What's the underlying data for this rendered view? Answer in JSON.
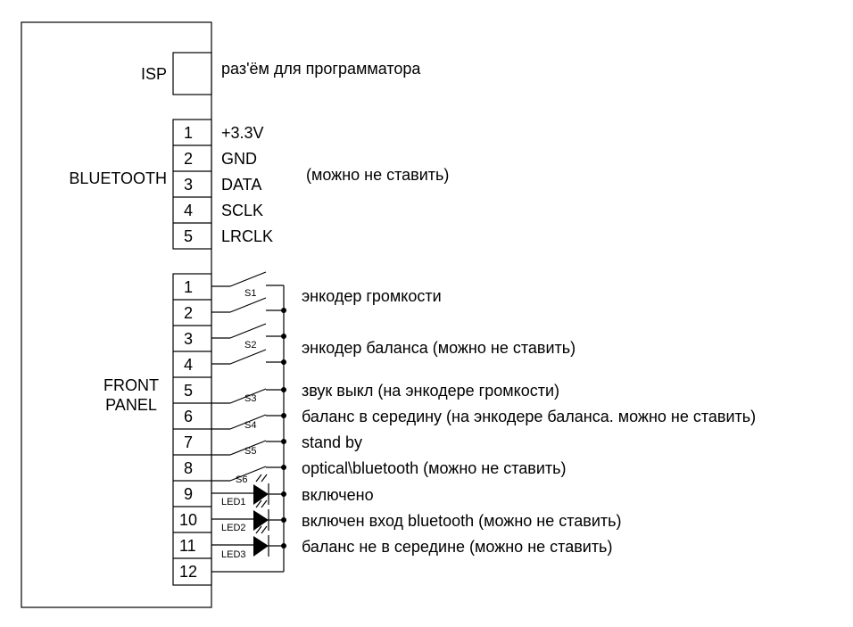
{
  "isp": {
    "label": "ISP",
    "desc": "раз'ём для программатора"
  },
  "bluetooth": {
    "label": "BLUETOOTH",
    "note": "(можно не ставить)",
    "pins": [
      {
        "num": "1",
        "signal": "+3.3V"
      },
      {
        "num": "2",
        "signal": "GND"
      },
      {
        "num": "3",
        "signal": "DATA"
      },
      {
        "num": "4",
        "signal": "SCLK"
      },
      {
        "num": "5",
        "signal": "LRCLK"
      }
    ]
  },
  "front_panel": {
    "label_line1": "FRONT",
    "label_line2": "PANEL",
    "pins": [
      "1",
      "2",
      "3",
      "4",
      "5",
      "6",
      "7",
      "8",
      "9",
      "10",
      "11",
      "12"
    ],
    "switches": [
      "S1",
      "S2",
      "S3",
      "S4",
      "S5",
      "S6"
    ],
    "leds": [
      "LED1",
      "LED2",
      "LED3"
    ],
    "descriptions": [
      "энкодер громкости",
      "энкодер баланса (можно не ставить)",
      "звук выкл (на энкодере громкости)",
      "баланс в середину (на энкодере баланса. можно не ставить)",
      "stand by",
      "optical\\bluetooth (можно не ставить)",
      "включено",
      "включен вход bluetooth (можно не ставить)",
      "баланс не в середине (можно не ставить)"
    ]
  }
}
